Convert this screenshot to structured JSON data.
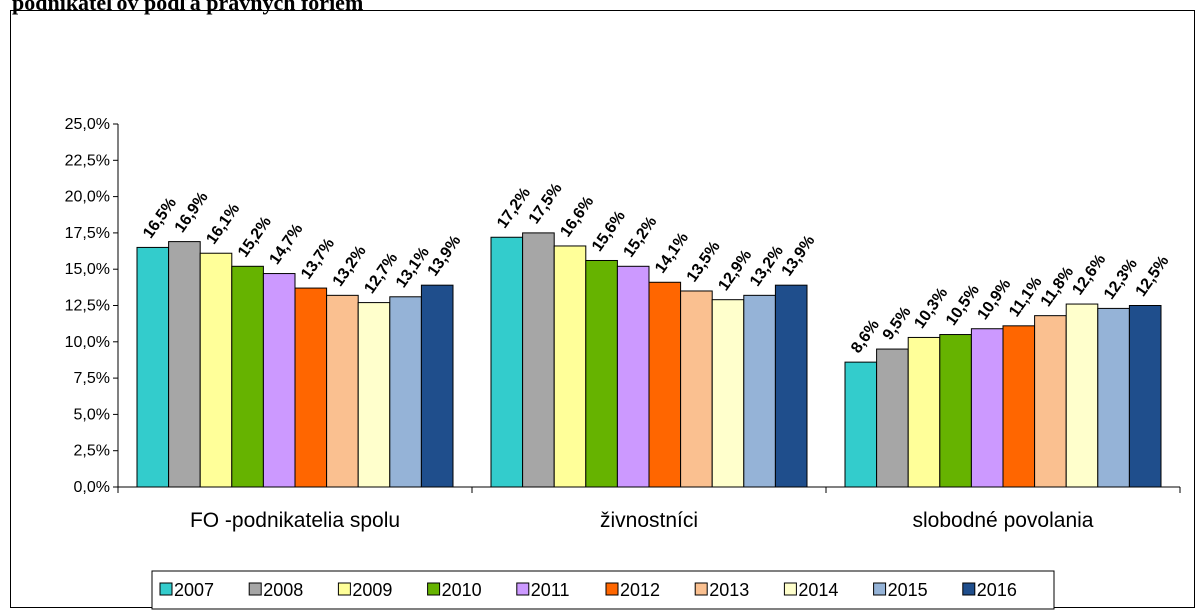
{
  "chart_data": {
    "type": "bar",
    "title": "podnikateľov podľa právnych foriem",
    "xlabel": "",
    "ylabel": "",
    "ylim": [
      0,
      25
    ],
    "yticks": [
      "0,0%",
      "2,5%",
      "5,0%",
      "7,5%",
      "10,0%",
      "12,5%",
      "15,0%",
      "17,5%",
      "20,0%",
      "22,5%",
      "25,0%"
    ],
    "categories": [
      "FO -podnikatelia spolu",
      "živnostníci",
      "slobodné povolania"
    ],
    "legend_position": "bottom",
    "grid": false,
    "series": [
      {
        "name": "2007",
        "color": "#33CCCC",
        "values": [
          16.5,
          17.2,
          8.6
        ],
        "labels": [
          "16,5%",
          "17,2%",
          "8,6%"
        ]
      },
      {
        "name": "2008",
        "color": "#A6A6A6",
        "values": [
          16.9,
          17.5,
          9.5
        ],
        "labels": [
          "16,9%",
          "17,5%",
          "9,5%"
        ]
      },
      {
        "name": "2009",
        "color": "#FFFF99",
        "values": [
          16.1,
          16.6,
          10.3
        ],
        "labels": [
          "16,1%",
          "16,6%",
          "10,3%"
        ]
      },
      {
        "name": "2010",
        "color": "#66B300",
        "values": [
          15.2,
          15.6,
          10.5
        ],
        "labels": [
          "15,2%",
          "15,6%",
          "10,5%"
        ]
      },
      {
        "name": "2011",
        "color": "#CC99FF",
        "values": [
          14.7,
          15.2,
          10.9
        ],
        "labels": [
          "14,7%",
          "15,2%",
          "10,9%"
        ]
      },
      {
        "name": "2012",
        "color": "#FF6600",
        "values": [
          13.7,
          14.1,
          11.1
        ],
        "labels": [
          "13,7%",
          "14,1%",
          "11,1%"
        ]
      },
      {
        "name": "2013",
        "color": "#FAC090",
        "values": [
          13.2,
          13.5,
          11.8
        ],
        "labels": [
          "13,2%",
          "13,5%",
          "11,8%"
        ]
      },
      {
        "name": "2014",
        "color": "#FFFFCC",
        "values": [
          12.7,
          12.9,
          12.6
        ],
        "labels": [
          "12,7%",
          "12,9%",
          "12,6%"
        ]
      },
      {
        "name": "2015",
        "color": "#95B3D7",
        "values": [
          13.1,
          13.2,
          12.3
        ],
        "labels": [
          "13,1%",
          "13,2%",
          "12,3%"
        ]
      },
      {
        "name": "2016",
        "color": "#1F4E8C",
        "values": [
          13.9,
          13.9,
          12.5
        ],
        "labels": [
          "13,9%",
          "13,9%",
          "12,5%"
        ]
      }
    ]
  }
}
